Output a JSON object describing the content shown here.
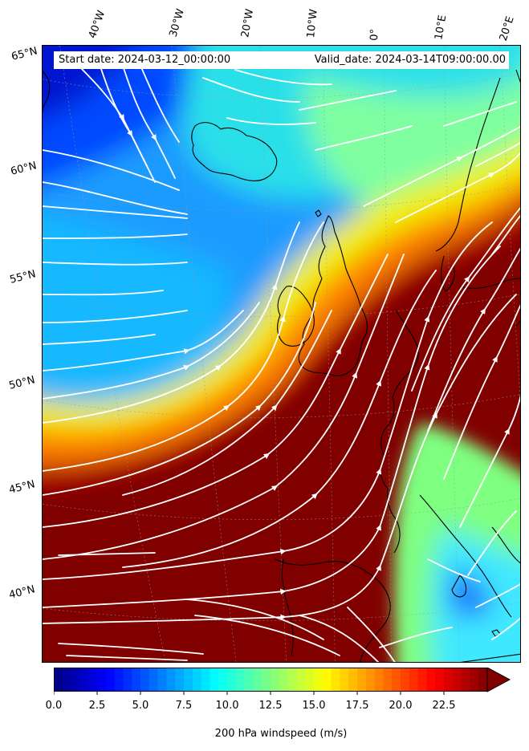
{
  "header": {
    "start_date": "Start date: 2024-03-12_00:00:00",
    "valid_date": "Valid_date: 2024-03-14T09:00:00.00"
  },
  "axes": {
    "longitude_labels": [
      "40°W",
      "30°W",
      "20°W",
      "10°W",
      "0°",
      "10°E",
      "20°E"
    ],
    "latitude_labels": [
      "65°N",
      "60°N",
      "55°N",
      "50°N",
      "45°N",
      "40°N"
    ]
  },
  "colorbar": {
    "label": "200 hPa windspeed (m/s)",
    "ticks": [
      "0.0",
      "2.5",
      "5.0",
      "7.5",
      "10.0",
      "12.5",
      "15.0",
      "17.5",
      "20.0",
      "22.5"
    ],
    "min": 0,
    "max": 25,
    "extend": "max",
    "colormap": "jet"
  },
  "chart_data": {
    "type": "heatmap",
    "variable": "200 hPa windspeed",
    "units": "m/s",
    "overlay": "streamlines",
    "region": "North Atlantic / Western Europe",
    "lon_range": [
      -45,
      22
    ],
    "lat_range": [
      36,
      66
    ],
    "jet_stream_max": ">25 m/s",
    "colors": {
      "streamlines": "#ffffff",
      "coastline": "#000000",
      "max_color": "#800000",
      "min_color": "#00007f"
    }
  }
}
